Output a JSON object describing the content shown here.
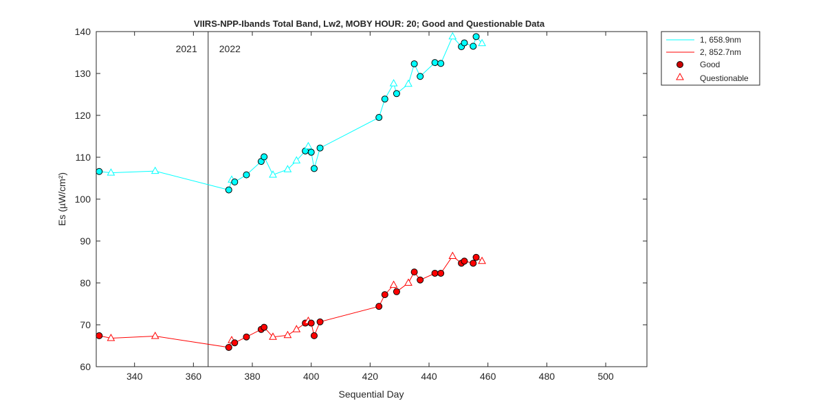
{
  "chart_data": {
    "type": "line",
    "title": "VIIRS-NPP-Ibands Total Band,  Lw2, MOBY HOUR: 20;  Good and Questionable Data",
    "xlabel": "Sequential Day",
    "ylabel": "Es (µW/cm²)",
    "xlim": [
      327,
      514
    ],
    "ylim": [
      60,
      140
    ],
    "xticks": [
      340,
      360,
      380,
      400,
      420,
      440,
      460,
      480,
      500
    ],
    "yticks": [
      60,
      70,
      80,
      90,
      100,
      110,
      120,
      130,
      140
    ],
    "grid": false,
    "legend_position": "outside-top-right",
    "year_divider": {
      "x": 365,
      "left_label": "2021",
      "right_label": "2022"
    },
    "legend": {
      "series1": "1, 658.9nm",
      "series2": "2, 852.7nm",
      "good": "Good",
      "questionable": "Questionable"
    },
    "series": [
      {
        "name": "1, 658.9nm",
        "color": "#00ffff",
        "x": [
          328,
          332,
          347,
          372,
          373,
          374,
          378,
          383,
          384,
          387,
          392,
          395,
          398,
          399,
          400,
          401,
          403,
          423,
          425,
          428,
          429,
          433,
          435,
          437,
          442,
          444,
          448,
          451,
          452,
          455,
          456,
          458
        ],
        "y": [
          106.6,
          106.3,
          106.7,
          102.2,
          104.6,
          104.1,
          105.8,
          109.0,
          110.1,
          105.8,
          107.1,
          109.2,
          111.5,
          112.6,
          111.2,
          107.3,
          112.2,
          119.5,
          123.9,
          127.6,
          125.2,
          127.5,
          132.3,
          129.3,
          132.6,
          132.4,
          138.8,
          136.4,
          137.3,
          136.5,
          138.8,
          137.2
        ],
        "quality": [
          "G",
          "Q",
          "Q",
          "G",
          "Q",
          "G",
          "G",
          "G",
          "G",
          "Q",
          "Q",
          "Q",
          "G",
          "Q",
          "G",
          "G",
          "G",
          "G",
          "G",
          "Q",
          "G",
          "Q",
          "G",
          "G",
          "G",
          "G",
          "Q",
          "G",
          "G",
          "G",
          "G",
          "Q"
        ]
      },
      {
        "name": "2, 852.7nm",
        "color": "#ff0000",
        "x": [
          328,
          332,
          347,
          372,
          373,
          374,
          378,
          383,
          384,
          387,
          392,
          395,
          398,
          399,
          400,
          401,
          403,
          423,
          425,
          428,
          429,
          433,
          435,
          437,
          442,
          444,
          448,
          451,
          452,
          455,
          456,
          458
        ],
        "y": [
          67.4,
          66.8,
          67.3,
          64.6,
          66.3,
          65.7,
          67.1,
          68.9,
          69.4,
          67.1,
          67.5,
          68.9,
          70.4,
          70.9,
          70.4,
          67.4,
          70.7,
          74.4,
          77.2,
          79.5,
          77.9,
          80.0,
          82.6,
          80.7,
          82.3,
          82.3,
          86.4,
          84.7,
          85.2,
          84.7,
          86.1,
          85.2
        ],
        "quality": [
          "G",
          "Q",
          "Q",
          "G",
          "Q",
          "G",
          "G",
          "G",
          "G",
          "Q",
          "Q",
          "Q",
          "G",
          "Q",
          "G",
          "G",
          "G",
          "G",
          "G",
          "Q",
          "G",
          "Q",
          "G",
          "G",
          "G",
          "G",
          "Q",
          "G",
          "G",
          "G",
          "G",
          "Q"
        ]
      }
    ]
  }
}
